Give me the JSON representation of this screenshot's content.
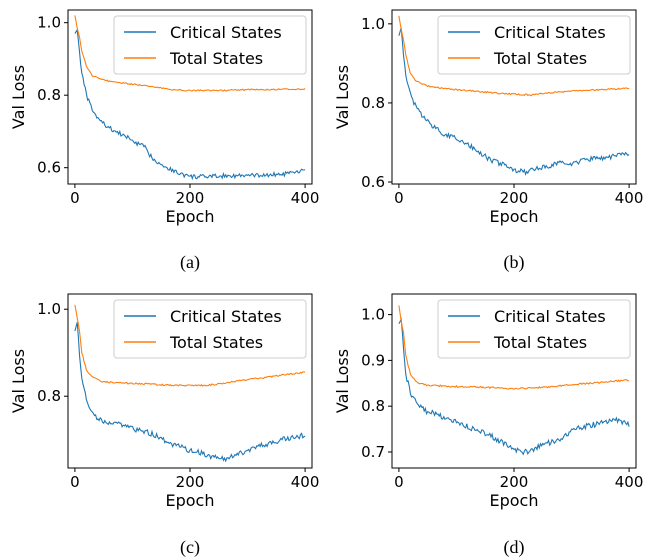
{
  "chart_data": [
    {
      "type": "line",
      "caption": "(a)",
      "xlabel": "Epoch",
      "ylabel": "Val Loss",
      "xlim": [
        -12,
        412
      ],
      "ylim": [
        0.555,
        1.035
      ],
      "xticks": [
        0,
        200,
        400
      ],
      "yticks": [
        0.6,
        0.8,
        1.0
      ],
      "legend": "top-right",
      "series": [
        {
          "name": "Critical States",
          "color": "#1f77b4",
          "x": [
            0,
            4,
            8,
            12,
            20,
            30,
            40,
            55,
            70,
            90,
            110,
            120,
            130,
            140,
            160,
            180,
            200,
            230,
            260,
            300,
            340,
            370,
            400
          ],
          "y": [
            0.97,
            0.98,
            0.92,
            0.86,
            0.8,
            0.76,
            0.735,
            0.715,
            0.7,
            0.685,
            0.665,
            0.66,
            0.635,
            0.62,
            0.6,
            0.585,
            0.575,
            0.575,
            0.578,
            0.578,
            0.58,
            0.583,
            0.592
          ]
        },
        {
          "name": "Total States",
          "color": "#ff7f0e",
          "x": [
            0,
            4,
            8,
            12,
            20,
            30,
            45,
            60,
            90,
            130,
            170,
            200,
            250,
            300,
            350,
            400
          ],
          "y": [
            1.02,
            0.985,
            0.96,
            0.92,
            0.88,
            0.855,
            0.845,
            0.838,
            0.832,
            0.825,
            0.815,
            0.813,
            0.813,
            0.815,
            0.816,
            0.817
          ]
        }
      ]
    },
    {
      "type": "line",
      "caption": "(b)",
      "xlabel": "Epoch",
      "ylabel": "Val Loss",
      "xlim": [
        -12,
        412
      ],
      "ylim": [
        0.595,
        1.035
      ],
      "xticks": [
        0,
        200,
        400
      ],
      "yticks": [
        0.6,
        0.8,
        1.0
      ],
      "legend": "top-right",
      "series": [
        {
          "name": "Critical States",
          "color": "#1f77b4",
          "x": [
            0,
            4,
            8,
            12,
            20,
            30,
            45,
            60,
            80,
            100,
            120,
            140,
            160,
            180,
            200,
            220,
            240,
            260,
            280,
            300,
            320,
            340,
            360,
            380,
            400
          ],
          "y": [
            0.97,
            0.99,
            0.92,
            0.87,
            0.82,
            0.79,
            0.76,
            0.74,
            0.72,
            0.71,
            0.695,
            0.675,
            0.655,
            0.645,
            0.63,
            0.625,
            0.635,
            0.64,
            0.65,
            0.645,
            0.655,
            0.66,
            0.66,
            0.67,
            0.668
          ]
        },
        {
          "name": "Total States",
          "color": "#ff7f0e",
          "x": [
            0,
            4,
            8,
            12,
            20,
            30,
            45,
            60,
            90,
            130,
            170,
            200,
            230,
            260,
            300,
            350,
            400
          ],
          "y": [
            1.02,
            0.985,
            0.96,
            0.92,
            0.875,
            0.855,
            0.845,
            0.84,
            0.835,
            0.83,
            0.825,
            0.822,
            0.82,
            0.825,
            0.83,
            0.833,
            0.837
          ]
        }
      ]
    },
    {
      "type": "line",
      "caption": "(c)",
      "xlabel": "Epoch",
      "ylabel": "Val Loss",
      "xlim": [
        -12,
        412
      ],
      "ylim": [
        0.635,
        1.035
      ],
      "xticks": [
        0,
        200,
        400
      ],
      "yticks": [
        0.8,
        1.0
      ],
      "legend": "top-right",
      "series": [
        {
          "name": "Critical States",
          "color": "#1f77b4",
          "x": [
            0,
            4,
            8,
            12,
            20,
            30,
            45,
            60,
            80,
            100,
            120,
            140,
            160,
            180,
            200,
            220,
            240,
            260,
            280,
            300,
            320,
            340,
            360,
            380,
            400
          ],
          "y": [
            0.95,
            0.97,
            0.9,
            0.84,
            0.79,
            0.76,
            0.745,
            0.74,
            0.735,
            0.725,
            0.72,
            0.71,
            0.695,
            0.685,
            0.675,
            0.67,
            0.66,
            0.655,
            0.665,
            0.675,
            0.685,
            0.69,
            0.7,
            0.705,
            0.71
          ]
        },
        {
          "name": "Total States",
          "color": "#ff7f0e",
          "x": [
            0,
            4,
            8,
            12,
            20,
            30,
            45,
            60,
            90,
            130,
            170,
            200,
            230,
            260,
            300,
            350,
            400
          ],
          "y": [
            1.01,
            0.98,
            0.95,
            0.9,
            0.86,
            0.845,
            0.835,
            0.832,
            0.83,
            0.828,
            0.825,
            0.825,
            0.825,
            0.83,
            0.838,
            0.847,
            0.855
          ]
        }
      ]
    },
    {
      "type": "line",
      "caption": "(d)",
      "xlabel": "Epoch",
      "ylabel": "Val Loss",
      "xlim": [
        -12,
        412
      ],
      "ylim": [
        0.665,
        1.045
      ],
      "xticks": [
        0,
        200,
        400
      ],
      "yticks": [
        0.7,
        0.8,
        0.9,
        1.0
      ],
      "legend": "top-right",
      "series": [
        {
          "name": "Critical States",
          "color": "#1f77b4",
          "x": [
            0,
            4,
            8,
            12,
            20,
            30,
            45,
            60,
            80,
            100,
            120,
            140,
            160,
            180,
            200,
            220,
            240,
            260,
            280,
            300,
            320,
            340,
            360,
            380,
            400
          ],
          "y": [
            0.98,
            0.99,
            0.93,
            0.87,
            0.83,
            0.81,
            0.79,
            0.785,
            0.775,
            0.765,
            0.755,
            0.745,
            0.735,
            0.72,
            0.705,
            0.7,
            0.71,
            0.72,
            0.73,
            0.745,
            0.755,
            0.76,
            0.765,
            0.77,
            0.76
          ]
        },
        {
          "name": "Total States",
          "color": "#ff7f0e",
          "x": [
            0,
            4,
            8,
            12,
            20,
            30,
            45,
            60,
            90,
            130,
            170,
            200,
            230,
            260,
            300,
            350,
            400
          ],
          "y": [
            1.02,
            0.985,
            0.96,
            0.91,
            0.87,
            0.853,
            0.847,
            0.845,
            0.843,
            0.842,
            0.84,
            0.838,
            0.84,
            0.842,
            0.847,
            0.852,
            0.857
          ]
        }
      ]
    }
  ]
}
